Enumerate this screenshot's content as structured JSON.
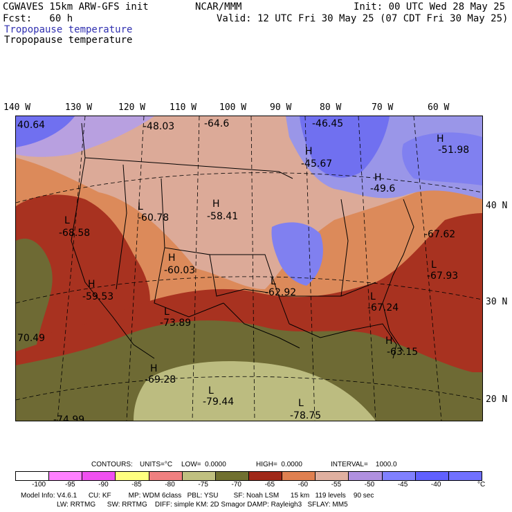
{
  "header": {
    "model": "CGWAVES 15km ARW-GFS init",
    "org": "NCAR/MMM",
    "init": "Init: 00 UTC Wed 28 May 25",
    "fcst": "Fcst:   60 h",
    "valid": "Valid: 12 UTC Fri 30 May 25 (07 CDT Fri 30 May 25)",
    "field_blue": "Tropopause temperature",
    "field_black": "Tropopause temperature"
  },
  "longitudes": [
    "140 W",
    "130 W",
    "120 W",
    "110 W",
    "100 W",
    "90 W",
    "80 W",
    "70 W",
    "60 W"
  ],
  "latitudes": [
    "40 N",
    "30 N",
    "20 N"
  ],
  "map_labels": [
    {
      "kind": "value",
      "text": "40.64"
    },
    {
      "kind": "value",
      "text": "-48.03"
    },
    {
      "kind": "value",
      "text": "-64.6"
    },
    {
      "kind": "value",
      "text": "-46.45"
    },
    {
      "kind": "H",
      "text": "H"
    },
    {
      "kind": "value",
      "text": "-45.67"
    },
    {
      "kind": "H",
      "text": "H"
    },
    {
      "kind": "value",
      "text": "-51.98"
    },
    {
      "kind": "H",
      "text": "H"
    },
    {
      "kind": "value",
      "text": "-49.6"
    },
    {
      "kind": "L",
      "text": "L"
    },
    {
      "kind": "value",
      "text": "-60.78"
    },
    {
      "kind": "H",
      "text": "H"
    },
    {
      "kind": "value",
      "text": "-58.41"
    },
    {
      "kind": "L",
      "text": "L"
    },
    {
      "kind": "value",
      "text": "-68.58"
    },
    {
      "kind": "value",
      "text": "-67.62"
    },
    {
      "kind": "H",
      "text": "H"
    },
    {
      "kind": "value",
      "text": "-60.03"
    },
    {
      "kind": "L",
      "text": "L"
    },
    {
      "kind": "value",
      "text": "-67.93"
    },
    {
      "kind": "H",
      "text": "H"
    },
    {
      "kind": "value",
      "text": "-59.53"
    },
    {
      "kind": "L",
      "text": "L"
    },
    {
      "kind": "value",
      "text": "-62.92"
    },
    {
      "kind": "L",
      "text": "L"
    },
    {
      "kind": "value",
      "text": "-73.89"
    },
    {
      "kind": "L",
      "text": "L"
    },
    {
      "kind": "value",
      "text": "-67.24"
    },
    {
      "kind": "value",
      "text": "70.49"
    },
    {
      "kind": "H",
      "text": "H"
    },
    {
      "kind": "value",
      "text": "-63.15"
    },
    {
      "kind": "H",
      "text": "H"
    },
    {
      "kind": "value",
      "text": "-69.28"
    },
    {
      "kind": "L",
      "text": "L"
    },
    {
      "kind": "value",
      "text": "-79.44"
    },
    {
      "kind": "L",
      "text": "L"
    },
    {
      "kind": "value",
      "text": "-78.75"
    },
    {
      "kind": "value",
      "text": "-74.99"
    }
  ],
  "contours": {
    "label": "CONTOURS:",
    "units": "UNITS=°C",
    "low": "LOW=  0.0000",
    "high": "HIGH=  0.0000",
    "interval": "INTERVAL=    1000.0"
  },
  "colorbar": {
    "colors": [
      "#ffffff",
      "#ff80ff",
      "#f050f0",
      "#ffff80",
      "#f08080",
      "#c0c080",
      "#707030",
      "#a02818",
      "#e08050",
      "#e0b0a0",
      "#b090e0",
      "#8080ff",
      "#6060ff",
      "#7070ff"
    ],
    "ticks": [
      "-100",
      "-95",
      "-90",
      "-85",
      "-80",
      "-75",
      "-70",
      "-65",
      "-60",
      "-55",
      "-50",
      "-45",
      "-40"
    ],
    "unit": "°C"
  },
  "model_info": {
    "line1": "Model Info: V4.6.1      CU: KF         MP: WDM 6class   PBL: YSU        SF: Noah LSM      15 km   119 levels    90 sec",
    "line2": "LW: RRTMG      SW: RRTMG    DIFF: simple KM: 2D Smagor DAMP: Rayleigh3   SFLAY: MM5"
  },
  "palette": {
    "blue_dark": "#7070f0",
    "blue_light": "#9a96e8",
    "lilac": "#b8a0e0",
    "pink": "#dcaa98",
    "orange": "#dc8a5a",
    "red": "#a83220",
    "olive": "#6e6a34",
    "khaki": "#bcbc80"
  }
}
